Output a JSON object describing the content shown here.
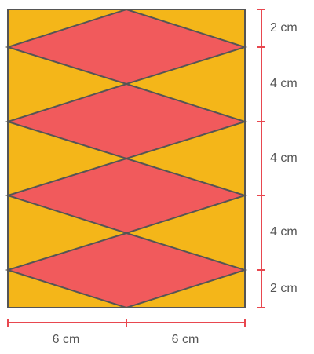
{
  "figure": {
    "description_colors": {
      "background_fill": "#F4B619",
      "diamond_fill": "#F15A5C",
      "outline": "#555555",
      "dimension_line": "#E8474F"
    },
    "vertical_segments": [
      {
        "value": 2,
        "label": "2 cm"
      },
      {
        "value": 4,
        "label": "4 cm"
      },
      {
        "value": 4,
        "label": "4 cm"
      },
      {
        "value": 4,
        "label": "4 cm"
      },
      {
        "value": 2,
        "label": "2 cm"
      }
    ],
    "horizontal_segments": [
      {
        "value": 6,
        "label": "6 cm"
      },
      {
        "value": 6,
        "label": "6 cm"
      }
    ],
    "diamond_count": 4
  }
}
